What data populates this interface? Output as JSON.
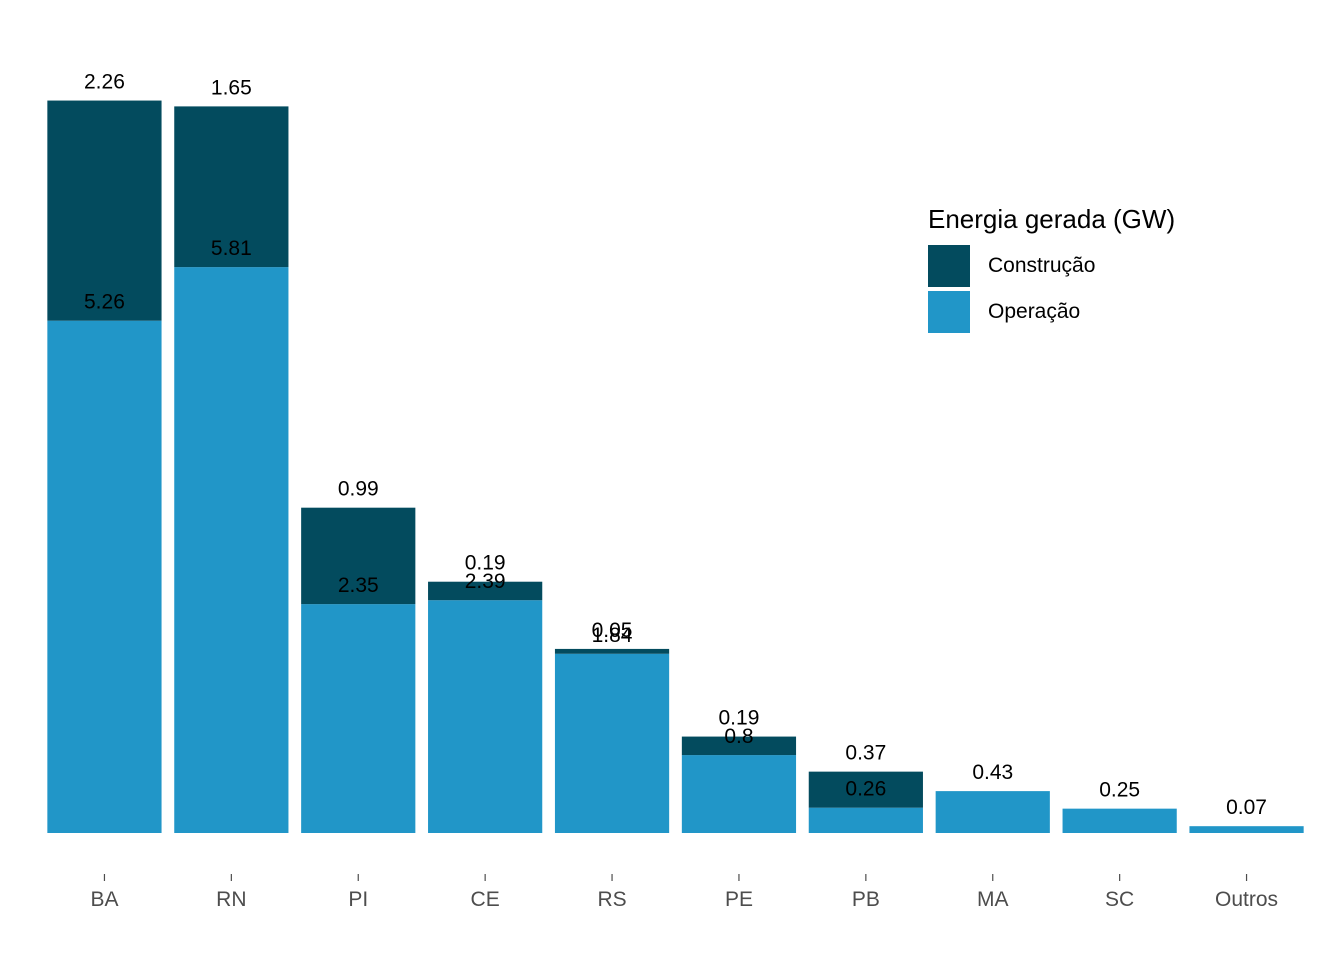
{
  "chart_data": {
    "type": "bar",
    "stacked": true,
    "categories": [
      "BA",
      "RN",
      "PI",
      "CE",
      "RS",
      "PE",
      "PB",
      "MA",
      "SC",
      "Outros"
    ],
    "series": [
      {
        "name": "Operação",
        "color": "#2196C8",
        "values": [
          5.26,
          5.81,
          2.35,
          2.39,
          1.84,
          0.8,
          0.26,
          0.43,
          0.25,
          0.07
        ]
      },
      {
        "name": "Construção",
        "color": "#034B5E",
        "values": [
          2.26,
          1.65,
          0.99,
          0.19,
          0.05,
          0.19,
          0.37,
          null,
          null,
          null
        ]
      }
    ],
    "value_labels": {
      "Operação": [
        "5.26",
        "5.81",
        "2.35",
        "2.39",
        "1.84",
        "0.8",
        "0.26",
        "0.43",
        "0.25",
        "0.07"
      ],
      "Construção": [
        "2.26",
        "1.65",
        "0.99",
        "0.19",
        "0.05",
        "0.19",
        "0.37",
        "",
        "",
        ""
      ]
    },
    "legend": {
      "title": "Energia gerada (GW)",
      "items": [
        "Construção",
        "Operação"
      ],
      "position": "top-right"
    },
    "ylim": [
      0,
      7.5
    ],
    "y_axis_visible": false,
    "grid": false
  }
}
